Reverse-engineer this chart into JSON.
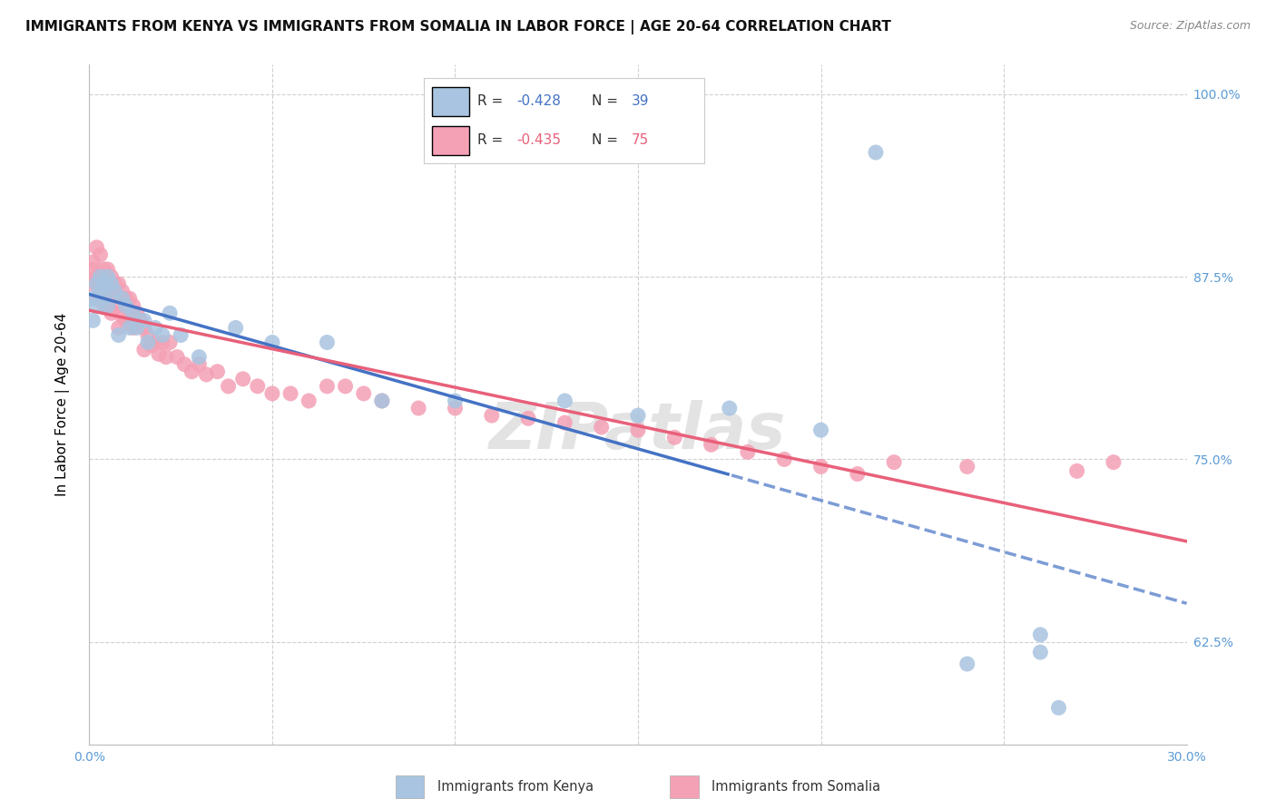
{
  "title": "IMMIGRANTS FROM KENYA VS IMMIGRANTS FROM SOMALIA IN LABOR FORCE | AGE 20-64 CORRELATION CHART",
  "source": "Source: ZipAtlas.com",
  "ylabel": "In Labor Force | Age 20-64",
  "xlim": [
    0.0,
    0.3
  ],
  "ylim": [
    0.555,
    1.02
  ],
  "yticks": [
    0.625,
    0.75,
    0.875,
    1.0
  ],
  "ytick_labels": [
    "62.5%",
    "75.0%",
    "87.5%",
    "100.0%"
  ],
  "xticks": [
    0.0,
    0.05,
    0.1,
    0.15,
    0.2,
    0.25,
    0.3
  ],
  "xtick_labels": [
    "0.0%",
    "",
    "",
    "",
    "",
    "",
    "30.0%"
  ],
  "kenya_R": -0.428,
  "kenya_N": 39,
  "somalia_R": -0.435,
  "somalia_N": 75,
  "kenya_color": "#a8c4e0",
  "somalia_color": "#f4a0b5",
  "kenya_line_color": "#4472c4",
  "somalia_line_color": "#e8607a",
  "watermark": "ZIPatlas",
  "background_color": "#ffffff",
  "grid_color": "#d0d0d0",
  "tick_color": "#5b9bd5",
  "title_fontsize": 11,
  "axis_label_fontsize": 11,
  "tick_fontsize": 10,
  "legend_fontsize": 11,
  "source_fontsize": 9,
  "kenya_x": [
    0.001,
    0.001,
    0.002,
    0.002,
    0.003,
    0.003,
    0.004,
    0.004,
    0.005,
    0.005,
    0.006,
    0.007,
    0.008,
    0.009,
    0.01,
    0.011,
    0.012,
    0.013,
    0.015,
    0.016,
    0.018,
    0.02,
    0.022,
    0.025,
    0.03,
    0.04,
    0.05,
    0.065,
    0.08,
    0.1,
    0.13,
    0.15,
    0.175,
    0.2,
    0.215,
    0.24,
    0.26,
    0.26,
    0.265
  ],
  "kenya_y": [
    0.845,
    0.86,
    0.855,
    0.87,
    0.865,
    0.875,
    0.87,
    0.86,
    0.855,
    0.875,
    0.87,
    0.865,
    0.835,
    0.86,
    0.855,
    0.84,
    0.85,
    0.84,
    0.845,
    0.83,
    0.84,
    0.835,
    0.85,
    0.835,
    0.82,
    0.84,
    0.83,
    0.83,
    0.79,
    0.79,
    0.79,
    0.78,
    0.785,
    0.77,
    0.96,
    0.61,
    0.618,
    0.63,
    0.58
  ],
  "somalia_x": [
    0.001,
    0.001,
    0.001,
    0.002,
    0.002,
    0.002,
    0.003,
    0.003,
    0.003,
    0.004,
    0.004,
    0.004,
    0.005,
    0.005,
    0.005,
    0.006,
    0.006,
    0.006,
    0.007,
    0.007,
    0.008,
    0.008,
    0.008,
    0.009,
    0.009,
    0.01,
    0.01,
    0.011,
    0.011,
    0.012,
    0.012,
    0.013,
    0.014,
    0.015,
    0.015,
    0.016,
    0.017,
    0.018,
    0.019,
    0.02,
    0.021,
    0.022,
    0.024,
    0.026,
    0.028,
    0.03,
    0.032,
    0.035,
    0.038,
    0.042,
    0.046,
    0.05,
    0.055,
    0.06,
    0.065,
    0.07,
    0.075,
    0.08,
    0.09,
    0.1,
    0.11,
    0.12,
    0.13,
    0.14,
    0.15,
    0.16,
    0.17,
    0.18,
    0.19,
    0.2,
    0.21,
    0.22,
    0.24,
    0.27,
    0.28
  ],
  "somalia_y": [
    0.885,
    0.88,
    0.87,
    0.895,
    0.875,
    0.86,
    0.89,
    0.875,
    0.86,
    0.88,
    0.87,
    0.855,
    0.88,
    0.865,
    0.855,
    0.875,
    0.865,
    0.85,
    0.87,
    0.855,
    0.87,
    0.855,
    0.84,
    0.865,
    0.848,
    0.86,
    0.845,
    0.86,
    0.843,
    0.855,
    0.84,
    0.85,
    0.845,
    0.84,
    0.825,
    0.835,
    0.828,
    0.83,
    0.822,
    0.83,
    0.82,
    0.83,
    0.82,
    0.815,
    0.81,
    0.815,
    0.808,
    0.81,
    0.8,
    0.805,
    0.8,
    0.795,
    0.795,
    0.79,
    0.8,
    0.8,
    0.795,
    0.79,
    0.785,
    0.785,
    0.78,
    0.778,
    0.775,
    0.772,
    0.77,
    0.765,
    0.76,
    0.755,
    0.75,
    0.745,
    0.74,
    0.748,
    0.745,
    0.742,
    0.748
  ]
}
